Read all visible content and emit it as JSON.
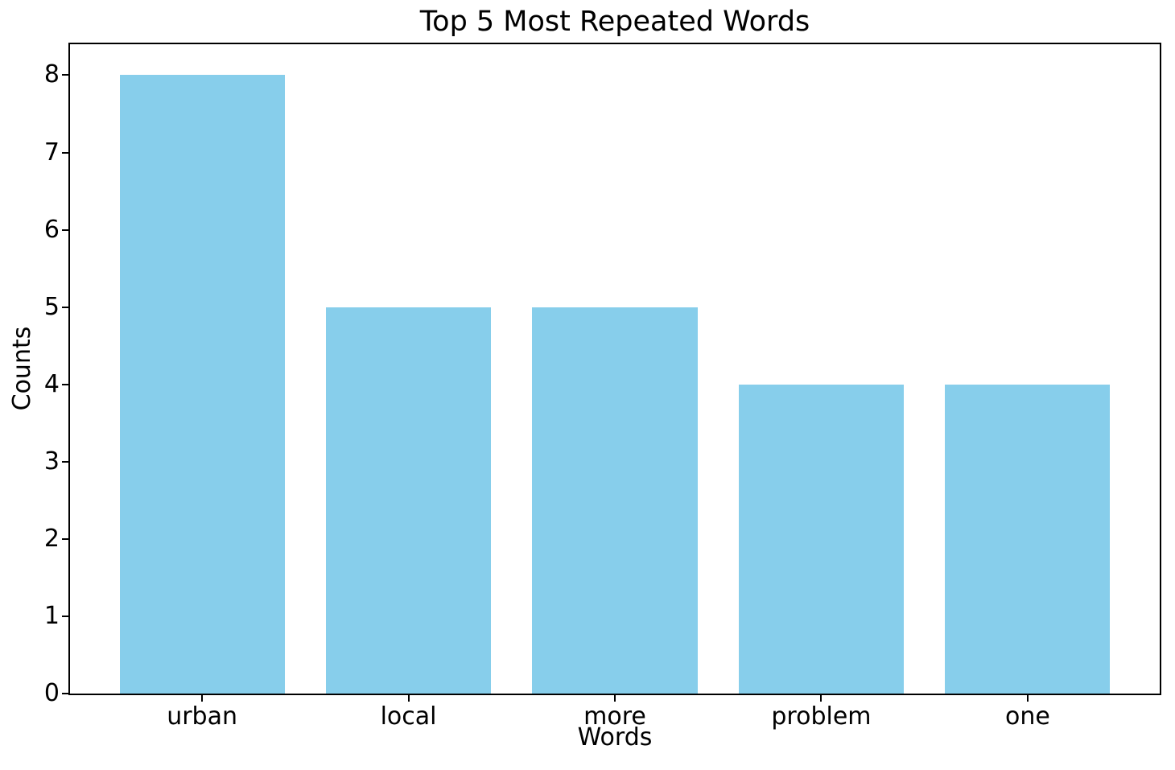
{
  "chart_data": {
    "type": "bar",
    "title": "Top 5 Most Repeated Words",
    "xlabel": "Words",
    "ylabel": "Counts",
    "categories": [
      "urban",
      "local",
      "more",
      "problem",
      "one"
    ],
    "values": [
      8,
      5,
      5,
      4,
      4
    ],
    "yticks": [
      0,
      1,
      2,
      3,
      4,
      5,
      6,
      7,
      8
    ],
    "ylim": [
      0,
      8.4
    ],
    "bar_width_frac": 0.8,
    "x_margin": 0.64,
    "grid": false,
    "legend": false,
    "colors": {
      "bar": "#87CEEB",
      "text": "#000000",
      "spine": "#000000",
      "background": "#FFFFFF"
    }
  }
}
